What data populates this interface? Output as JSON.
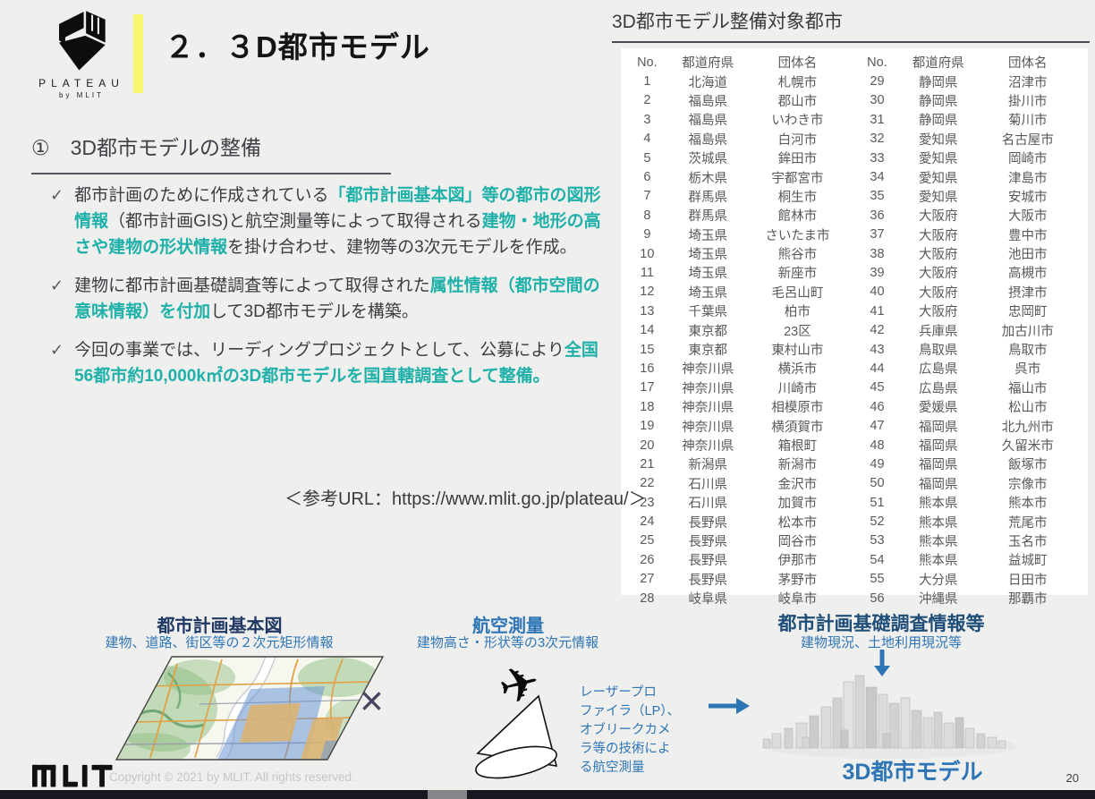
{
  "header": {
    "logo_text": "PLATEAU",
    "logo_subtext": "by MLIT",
    "title": "２．３D都市モデル"
  },
  "section": {
    "heading": "①　3D都市モデルの整備",
    "bullets": [
      {
        "segments": [
          {
            "t": "都市計画のために作成されている",
            "accent": false
          },
          {
            "t": "「都市計画基本図」等の都市の図形情報",
            "accent": true
          },
          {
            "t": "（都市計画GIS)と航空測量等によって取得される",
            "accent": false
          },
          {
            "t": "建物・地形の高さや建物の形状情報",
            "accent": true
          },
          {
            "t": "を掛け合わせ、建物等の3次元モデルを作成。",
            "accent": false
          }
        ]
      },
      {
        "segments": [
          {
            "t": "建物に都市計画基礎調査等によって取得された",
            "accent": false
          },
          {
            "t": "属性情報（都市空間の意味情報）を付加",
            "accent": true
          },
          {
            "t": "して3D都市モデルを構築。",
            "accent": false
          }
        ]
      },
      {
        "segments": [
          {
            "t": "今回の事業では、リーディングプロジェクトとして、公募により",
            "accent": false
          },
          {
            "t": "全国56都市約10,000k㎡の3D都市モデルを国直轄調査として整備。",
            "accent": true
          }
        ]
      }
    ],
    "check_glyph": "✓",
    "reference_url": "＜参考URL：https://www.mlit.go.jp/plateau/＞"
  },
  "table_panel": {
    "title": "3D都市モデル整備対象都市",
    "columns": [
      "No.",
      "都道府県",
      "団体名"
    ],
    "left_rows": [
      [
        "1",
        "北海道",
        "札幌市"
      ],
      [
        "2",
        "福島県",
        "郡山市"
      ],
      [
        "3",
        "福島県",
        "いわき市"
      ],
      [
        "4",
        "福島県",
        "白河市"
      ],
      [
        "5",
        "茨城県",
        "鉾田市"
      ],
      [
        "6",
        "栃木県",
        "宇都宮市"
      ],
      [
        "7",
        "群馬県",
        "桐生市"
      ],
      [
        "8",
        "群馬県",
        "館林市"
      ],
      [
        "9",
        "埼玉県",
        "さいたま市"
      ],
      [
        "10",
        "埼玉県",
        "熊谷市"
      ],
      [
        "11",
        "埼玉県",
        "新座市"
      ],
      [
        "12",
        "埼玉県",
        "毛呂山町"
      ],
      [
        "13",
        "千葉県",
        "柏市"
      ],
      [
        "14",
        "東京都",
        "23区"
      ],
      [
        "15",
        "東京都",
        "東村山市"
      ],
      [
        "16",
        "神奈川県",
        "横浜市"
      ],
      [
        "17",
        "神奈川県",
        "川崎市"
      ],
      [
        "18",
        "神奈川県",
        "相模原市"
      ],
      [
        "19",
        "神奈川県",
        "横須賀市"
      ],
      [
        "20",
        "神奈川県",
        "箱根町"
      ],
      [
        "21",
        "新潟県",
        "新潟市"
      ],
      [
        "22",
        "石川県",
        "金沢市"
      ],
      [
        "23",
        "石川県",
        "加賀市"
      ],
      [
        "24",
        "長野県",
        "松本市"
      ],
      [
        "25",
        "長野県",
        "岡谷市"
      ],
      [
        "26",
        "長野県",
        "伊那市"
      ],
      [
        "27",
        "長野県",
        "茅野市"
      ],
      [
        "28",
        "岐阜県",
        "岐阜市"
      ]
    ],
    "right_rows": [
      [
        "29",
        "静岡県",
        "沼津市"
      ],
      [
        "30",
        "静岡県",
        "掛川市"
      ],
      [
        "31",
        "静岡県",
        "菊川市"
      ],
      [
        "32",
        "愛知県",
        "名古屋市"
      ],
      [
        "33",
        "愛知県",
        "岡崎市"
      ],
      [
        "34",
        "愛知県",
        "津島市"
      ],
      [
        "35",
        "愛知県",
        "安城市"
      ],
      [
        "36",
        "大阪府",
        "大阪市"
      ],
      [
        "37",
        "大阪府",
        "豊中市"
      ],
      [
        "38",
        "大阪府",
        "池田市"
      ],
      [
        "39",
        "大阪府",
        "高槻市"
      ],
      [
        "40",
        "大阪府",
        "摂津市"
      ],
      [
        "41",
        "大阪府",
        "忠岡町"
      ],
      [
        "42",
        "兵庫県",
        "加古川市"
      ],
      [
        "43",
        "鳥取県",
        "鳥取市"
      ],
      [
        "44",
        "広島県",
        "呉市"
      ],
      [
        "45",
        "広島県",
        "福山市"
      ],
      [
        "46",
        "愛媛県",
        "松山市"
      ],
      [
        "47",
        "福岡県",
        "北九州市"
      ],
      [
        "48",
        "福岡県",
        "久留米市"
      ],
      [
        "49",
        "福岡県",
        "飯塚市"
      ],
      [
        "50",
        "福岡県",
        "宗像市"
      ],
      [
        "51",
        "熊本県",
        "熊本市"
      ],
      [
        "52",
        "熊本県",
        "荒尾市"
      ],
      [
        "53",
        "熊本県",
        "玉名市"
      ],
      [
        "54",
        "熊本県",
        "益城町"
      ],
      [
        "55",
        "大分県",
        "日田市"
      ],
      [
        "56",
        "沖縄県",
        "那覇市"
      ]
    ]
  },
  "bottom": {
    "col1": {
      "title": "都市計画基本図",
      "subtitle": "建物、道路、街区等の２次元矩形情報"
    },
    "multiply_glyph": "×",
    "col2": {
      "title": "航空測量",
      "subtitle": "建物高さ・形状等の3次元情報",
      "note_lines": "レーザープロ\nファイラ（LP）、\nオブリークカメ\nラ等の技術によ\nる航空測量",
      "plane_glyph": "✈"
    },
    "col3": {
      "title": "都市計画基礎調査情報等",
      "subtitle": "建物現況、土地利用現況等",
      "caption": "3D都市モデル"
    }
  },
  "footer": {
    "copyright": "Copyright © 2021 by MLIT. All rights reserved.",
    "page_number": "20"
  },
  "colors": {
    "accent_teal": "#1fb1a9",
    "blue": "#2e75b6",
    "navy_col1": "#203864",
    "navy_col3": "#1f4e79",
    "yellow_bar": "#f8f870",
    "background": "#efefed",
    "bottom_bar": "#17171f"
  }
}
